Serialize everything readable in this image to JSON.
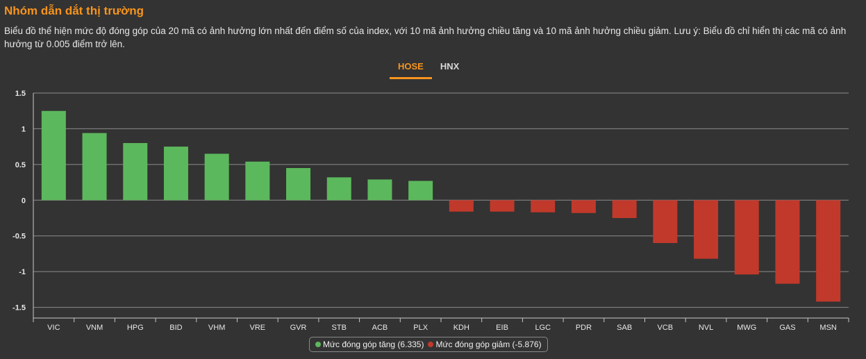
{
  "header": {
    "title": "Nhóm dẫn dắt thị trường",
    "description": "Biểu đồ thể hiện mức độ đóng góp của 20 mã có ảnh hưởng lớn nhất đến điểm số của index, với 10 mã ảnh hưởng chiều tăng và 10 mã ảnh hưởng chiều giảm. Lưu ý: Biểu đồ chỉ hiển thị các mã có ảnh hưởng từ 0.005 điểm trở lên."
  },
  "tabs": [
    {
      "label": "HOSE",
      "active": true
    },
    {
      "label": "HNX",
      "active": false
    }
  ],
  "colors": {
    "positive": "#5cb85c",
    "negative": "#c0392b",
    "accent": "#f7941d",
    "grid": "#8c8c8c"
  },
  "legend": {
    "positive_label": "Mức đóng góp tăng (6.335)",
    "negative_label": "Mức đóng góp giảm (-5.876)"
  },
  "chart_data": {
    "type": "bar",
    "categories": [
      "VIC",
      "VNM",
      "HPG",
      "BID",
      "VHM",
      "VRE",
      "GVR",
      "STB",
      "ACB",
      "PLX",
      "KDH",
      "EIB",
      "LGC",
      "PDR",
      "SAB",
      "VCB",
      "NVL",
      "MWG",
      "GAS",
      "MSN"
    ],
    "values": [
      1.25,
      0.94,
      0.8,
      0.75,
      0.65,
      0.54,
      0.45,
      0.32,
      0.29,
      0.27,
      -0.16,
      -0.16,
      -0.17,
      -0.18,
      -0.25,
      -0.6,
      -0.82,
      -1.04,
      -1.17,
      -1.42
    ],
    "ylim": [
      -1.65,
      1.5
    ],
    "yticks": [
      "1.5",
      "1",
      "0.5",
      "0",
      "-0.5",
      "-1",
      "-1.5"
    ],
    "ytick_values": [
      1.5,
      1,
      0.5,
      0,
      -0.5,
      -1,
      -1.5
    ],
    "grid": true
  }
}
